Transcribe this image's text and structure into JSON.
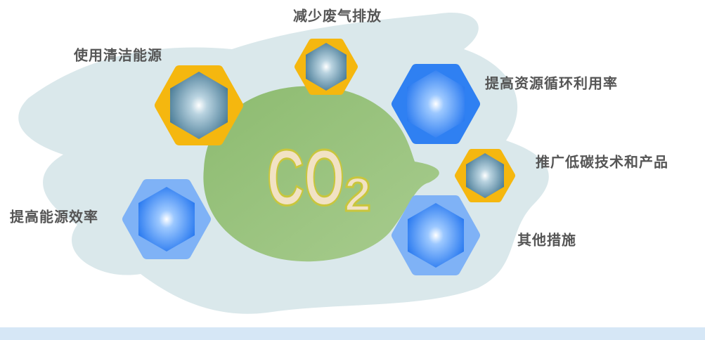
{
  "center": {
    "label": "CO",
    "subscript": "2"
  },
  "nodes": [
    {
      "label": "减少废气排放"
    },
    {
      "label": "使用清洁能源"
    },
    {
      "label": "提高资源循环利用率"
    },
    {
      "label": "推广低碳技术和产品"
    },
    {
      "label": "提高能源效率"
    },
    {
      "label": "其他措施"
    }
  ]
}
